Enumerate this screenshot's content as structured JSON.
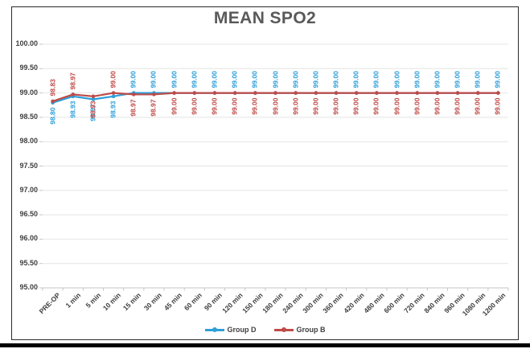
{
  "chart_data": {
    "type": "line",
    "title": "MEAN SPO2",
    "categories": [
      "PRE-OP",
      "1 min",
      "5 min",
      "10 min",
      "15 min",
      "30 min",
      "45 min",
      "60 min",
      "90 min",
      "120 min",
      "150 min",
      "180 min",
      "240 min",
      "300 min",
      "360 min",
      "420 min",
      "480 min",
      "600 min",
      "720 min",
      "840 min",
      "960 min",
      "1080 min",
      "1200 min"
    ],
    "yticks": [
      "100.00",
      "99.50",
      "99.00",
      "98.50",
      "98.00",
      "97.50",
      "97.00",
      "96.50",
      "96.00",
      "95.50",
      "95.00"
    ],
    "ylim": [
      95.0,
      100.0
    ],
    "ytick_step": 0.5,
    "grid": true,
    "legend_position": "bottom",
    "data_labels_rotated": "90deg-vertical",
    "series": [
      {
        "name": "Group D",
        "color": "#2E9FD9",
        "values": [
          98.8,
          98.93,
          98.87,
          98.93,
          99.0,
          99.0,
          99.0,
          99.0,
          99.0,
          99.0,
          99.0,
          99.0,
          99.0,
          99.0,
          99.0,
          99.0,
          99.0,
          99.0,
          99.0,
          99.0,
          99.0,
          99.0,
          99.0
        ],
        "label_side": [
          "below",
          "below",
          "below",
          "below",
          "above",
          "above",
          "above",
          "above",
          "above",
          "above",
          "above",
          "above",
          "above",
          "above",
          "above",
          "above",
          "above",
          "above",
          "above",
          "above",
          "above",
          "above",
          "above"
        ]
      },
      {
        "name": "Group B",
        "color": "#BE4B48",
        "values": [
          98.83,
          98.97,
          98.93,
          99.0,
          98.97,
          98.97,
          99.0,
          99.0,
          99.0,
          99.0,
          99.0,
          99.0,
          99.0,
          99.0,
          99.0,
          99.0,
          99.0,
          99.0,
          99.0,
          99.0,
          99.0,
          99.0,
          99.0
        ],
        "label_side": [
          "above",
          "above",
          "below",
          "above",
          "below",
          "below",
          "below",
          "below",
          "below",
          "below",
          "below",
          "below",
          "below",
          "below",
          "below",
          "below",
          "below",
          "below",
          "below",
          "below",
          "below",
          "below",
          "below"
        ]
      }
    ]
  }
}
